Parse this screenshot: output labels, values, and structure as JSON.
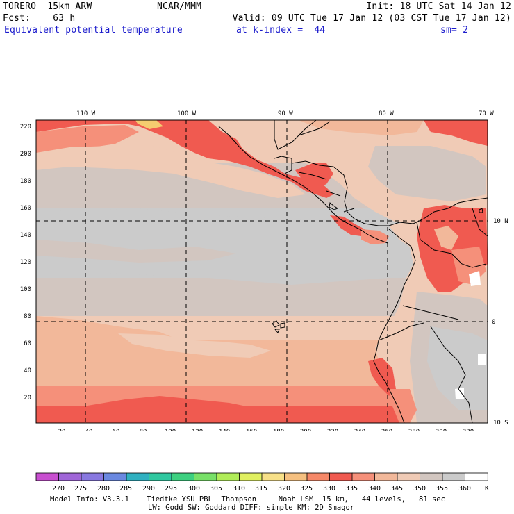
{
  "header": {
    "model": "TORERO  15km ARW",
    "center": "NCAR/MMM",
    "init": "Init: 18 UTC Sat 14 Jan 12",
    "fcst": "Fcst:    63 h",
    "valid": "Valid: 09 UTC Tue 17 Jan 12 (03 CST Tue 17 Jan 12)",
    "field": "Equivalent potential temperature",
    "level": "at k-index =  44",
    "smooth": "sm= 2"
  },
  "map": {
    "lon_labels": [
      "110 W",
      "100 W",
      "90 W",
      "80 W",
      "70 W"
    ],
    "lat_labels": [
      "10 N",
      "0",
      "10 S"
    ],
    "y_ticks": [
      "220",
      "200",
      "180",
      "160",
      "140",
      "120",
      "100",
      "80",
      "60",
      "40",
      "20"
    ],
    "x_ticks": [
      "20",
      "40",
      "60",
      "80",
      "100",
      "120",
      "140",
      "160",
      "180",
      "200",
      "220",
      "240",
      "260",
      "280",
      "300",
      "320"
    ],
    "colors": {
      "band_330": "#f05a50",
      "band_335": "#f5907a",
      "band_340": "#f2b89a",
      "band_345": "#f0cbb6",
      "band_350": "#d2c6c0",
      "band_355": "#cbcbcb",
      "band_360": "#ffffff",
      "band_320": "#f5cc70",
      "grid": "#000000"
    }
  },
  "colorbar": {
    "labels": [
      "270",
      "275",
      "280",
      "285",
      "290",
      "295",
      "300",
      "305",
      "310",
      "315",
      "320",
      "325",
      "330",
      "335",
      "340",
      "345",
      "350",
      "355",
      "360"
    ],
    "unit": "K",
    "colors": [
      "#c84fd0",
      "#a066d8",
      "#8878e0",
      "#6a88e0",
      "#2fb0c0",
      "#30c8a0",
      "#3dd080",
      "#78e068",
      "#b0ec58",
      "#e0f060",
      "#f7e088",
      "#f5c080",
      "#f58868",
      "#f05a50",
      "#f5907a",
      "#f2b89a",
      "#f0cbb6",
      "#d2c6c0",
      "#cbcbcb",
      "#ffffff"
    ]
  },
  "footer": {
    "line1": "Model Info: V3.3.1    Tiedtke YSU PBL  Thompson     Noah LSM  15 km,   44 levels,   81 sec",
    "line2": "LW: Godd SW: Goddard DIFF: simple KM: 2D Smagor"
  }
}
